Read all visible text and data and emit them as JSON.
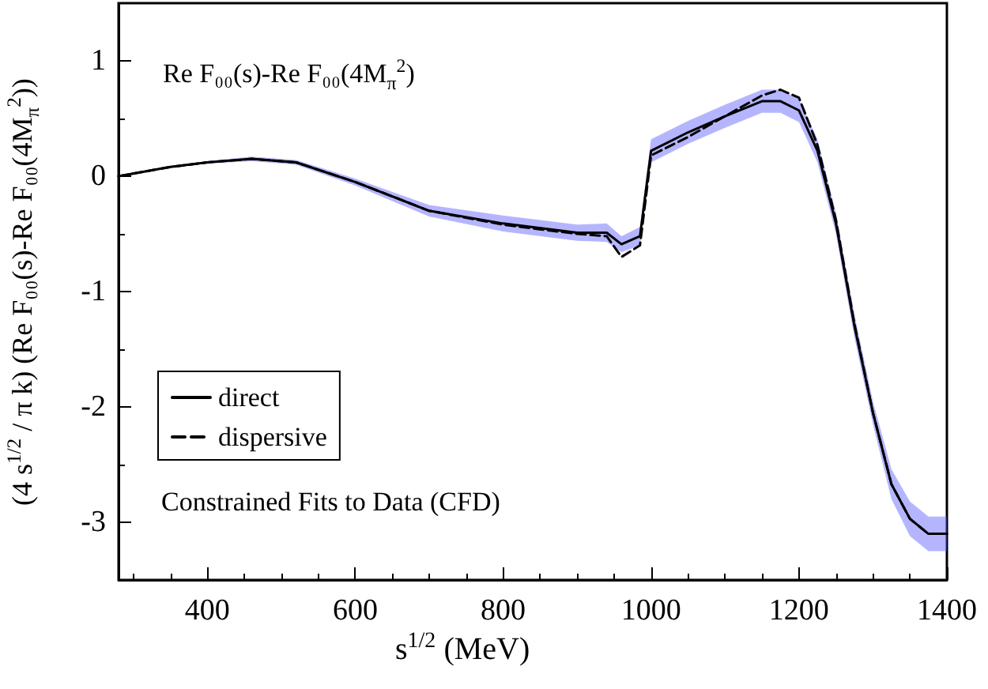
{
  "chart_data": {
    "type": "line",
    "xlabel": "s$^{1/2}$  (MeV)",
    "ylabel": "(4 s$^{1/2}$ / π k) (Re F₀₀(s)-Re F₀₀(4M$_{π}$$^{2}$))",
    "annotations": [
      "Re F₀₀(s)-Re F₀₀(4M$_{π}$$^{2}$)",
      "Constrained Fits to Data (CFD)"
    ],
    "xlim": [
      280,
      1400
    ],
    "xticks": [
      400,
      600,
      800,
      1000,
      1200,
      1400
    ],
    "ylim": [
      -3.5,
      1.5
    ],
    "yticks": [
      -3,
      -2,
      -1,
      0,
      1
    ],
    "x": [
      280,
      350,
      400,
      460,
      520,
      600,
      700,
      800,
      900,
      940,
      960,
      985,
      1000,
      1050,
      1100,
      1150,
      1175,
      1200,
      1225,
      1250,
      1275,
      1300,
      1325,
      1350,
      1375,
      1400
    ],
    "series": [
      {
        "name": "direct",
        "color": "#000000",
        "line_style": "solid",
        "values": [
          0,
          0.08,
          0.12,
          0.15,
          0.12,
          -0.05,
          -0.3,
          -0.41,
          -0.49,
          -0.49,
          -0.59,
          -0.52,
          0.22,
          0.38,
          0.52,
          0.65,
          0.65,
          0.57,
          0.22,
          -0.41,
          -1.3,
          -2.05,
          -2.67,
          -2.97,
          -3.1,
          -3.1
        ],
        "lower": [
          0,
          0.07,
          0.11,
          0.13,
          0.1,
          -0.08,
          -0.35,
          -0.48,
          -0.56,
          -0.57,
          -0.66,
          -0.6,
          0.12,
          0.28,
          0.42,
          0.55,
          0.55,
          0.47,
          0.12,
          -0.5,
          -1.4,
          -2.15,
          -2.8,
          -3.12,
          -3.25,
          -3.25
        ],
        "upper": [
          0,
          0.09,
          0.13,
          0.17,
          0.14,
          -0.02,
          -0.25,
          -0.34,
          -0.42,
          -0.41,
          -0.52,
          -0.44,
          0.32,
          0.48,
          0.62,
          0.75,
          0.75,
          0.67,
          0.32,
          -0.32,
          -1.2,
          -1.95,
          -2.54,
          -2.82,
          -2.95,
          -2.95
        ]
      },
      {
        "name": "dispersive",
        "color": "#000000",
        "line_style": "dashed",
        "values": [
          0,
          0.08,
          0.12,
          0.15,
          0.12,
          -0.05,
          -0.3,
          -0.42,
          -0.5,
          -0.52,
          -0.7,
          -0.6,
          0.18,
          0.34,
          0.52,
          0.7,
          0.75,
          0.68,
          0.27,
          -0.38,
          -1.28,
          -2.05,
          -2.67,
          -2.97,
          -3.1,
          -3.1
        ]
      }
    ],
    "legend": "bottom left",
    "marker": "none",
    "grid": false
  }
}
